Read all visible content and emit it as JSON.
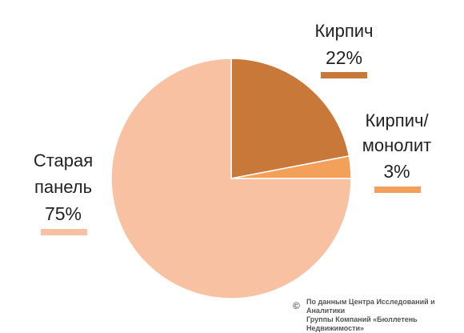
{
  "chart_data": {
    "type": "pie",
    "slices": [
      {
        "label": "Кирпич",
        "value": 22,
        "value_text": "22%",
        "color": "#c8793a"
      },
      {
        "label": "Кирпич/ монолит",
        "label_lines": [
          "Кирпич/",
          "монолит"
        ],
        "value": 3,
        "value_text": "3%",
        "color": "#f2a05a"
      },
      {
        "label": "Старая панель",
        "label_lines": [
          "Старая",
          "панель"
        ],
        "value": 75,
        "value_text": "75%",
        "color": "#f8c1a2"
      }
    ],
    "start": "12 o'clock, clockwise"
  },
  "source": {
    "copyright_symbol": "©",
    "line1": "По данным Центра Исследований и Аналитики",
    "line2": "Группы Компаний «Бюллетень Недвижимости»"
  }
}
